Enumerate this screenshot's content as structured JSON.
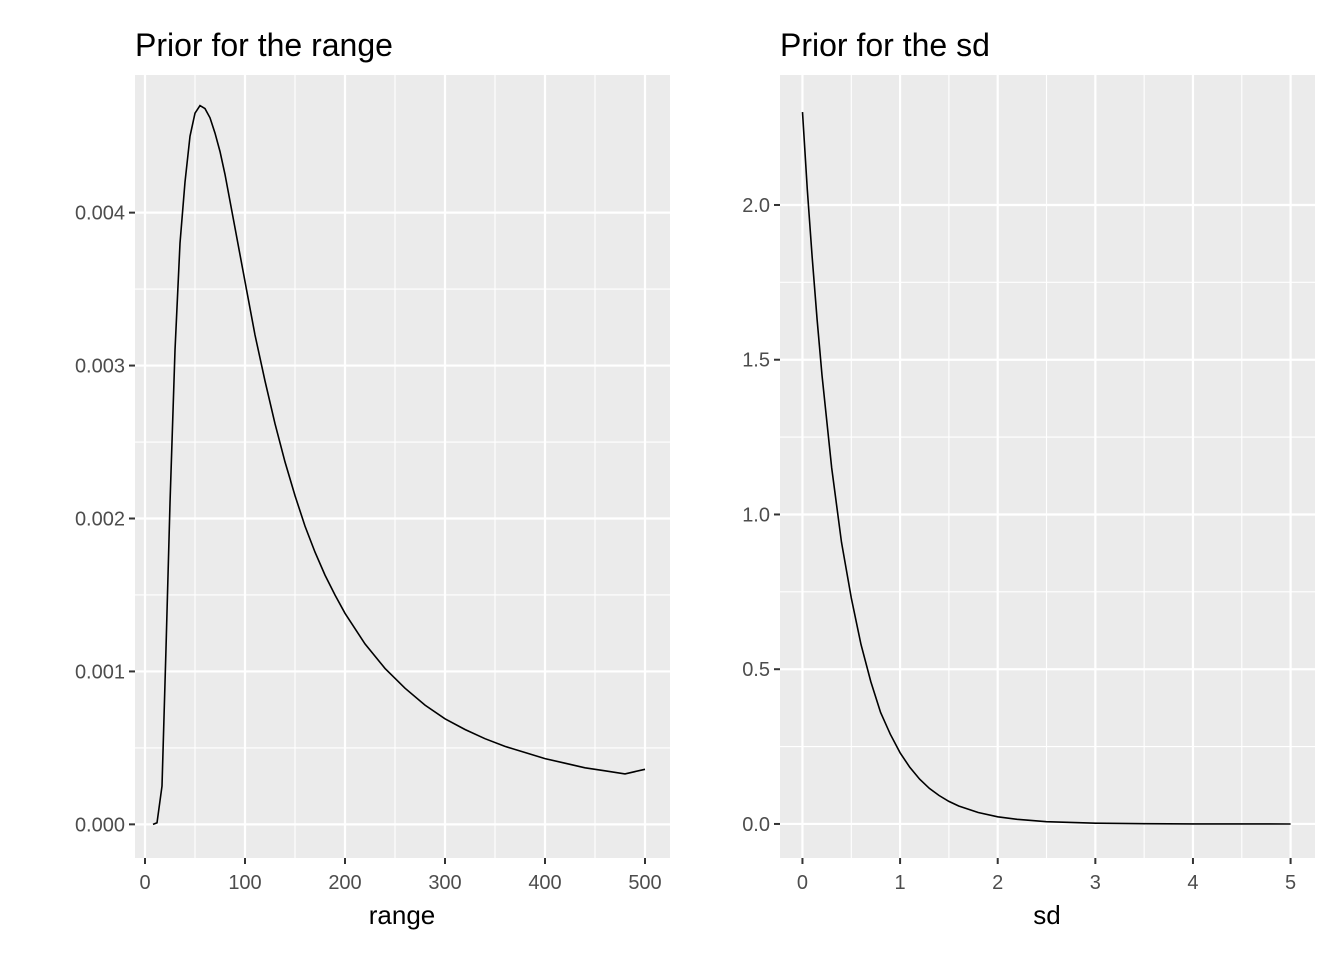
{
  "chart_data": [
    {
      "type": "line",
      "title": "Prior for the range",
      "xlabel": "range",
      "ylabel": "",
      "xlim": [
        -10,
        525
      ],
      "ylim": [
        -0.00022,
        0.0049
      ],
      "x_ticks": [
        0,
        100,
        200,
        300,
        400,
        500
      ],
      "x_tick_labels": [
        "0",
        "100",
        "200",
        "300",
        "400",
        "500"
      ],
      "y_ticks": [
        0,
        0.001,
        0.002,
        0.003,
        0.004
      ],
      "y_tick_labels": [
        "0.000",
        "0.001",
        "0.002",
        "0.003",
        "0.004"
      ],
      "grid": true,
      "series": [
        {
          "x": [
            8,
            12,
            17,
            21,
            25,
            30,
            35,
            40,
            45,
            50,
            55,
            60,
            65,
            70,
            75,
            80,
            90,
            100,
            110,
            120,
            130,
            140,
            150,
            160,
            170,
            180,
            190,
            200,
            220,
            240,
            260,
            280,
            300,
            320,
            340,
            360,
            380,
            400,
            420,
            440,
            460,
            480,
            500
          ],
          "y": [
            0.0,
            1e-05,
            0.00025,
            0.00115,
            0.0021,
            0.0031,
            0.0038,
            0.0042,
            0.0045,
            0.00465,
            0.0047,
            0.00468,
            0.00462,
            0.00452,
            0.0044,
            0.00425,
            0.0039,
            0.00355,
            0.0032,
            0.0029,
            0.00262,
            0.00237,
            0.00215,
            0.00195,
            0.00178,
            0.00163,
            0.0015,
            0.00138,
            0.00118,
            0.00102,
            0.00089,
            0.00078,
            0.00069,
            0.00062,
            0.00056,
            0.00051,
            0.00047,
            0.00043,
            0.0004,
            0.00037,
            0.00035,
            0.00033,
            0.00036
          ]
        }
      ]
    },
    {
      "type": "line",
      "title": "Prior for the sd",
      "xlabel": "sd",
      "ylabel": "",
      "xlim": [
        -0.23,
        5.25
      ],
      "ylim": [
        -0.11,
        2.42
      ],
      "x_ticks": [
        0,
        1,
        2,
        3,
        4,
        5
      ],
      "x_tick_labels": [
        "0",
        "1",
        "2",
        "3",
        "4",
        "5"
      ],
      "y_ticks": [
        0,
        0.5,
        1,
        1.5,
        2
      ],
      "y_tick_labels": [
        "0.0",
        "0.5",
        "1.0",
        "1.5",
        "2.0"
      ],
      "grid": true,
      "series": [
        {
          "x": [
            0.0,
            0.05,
            0.1,
            0.15,
            0.2,
            0.3,
            0.4,
            0.5,
            0.6,
            0.7,
            0.8,
            0.9,
            1.0,
            1.1,
            1.2,
            1.3,
            1.4,
            1.5,
            1.6,
            1.8,
            2.0,
            2.2,
            2.5,
            3.0,
            3.5,
            4.0,
            4.5,
            5.0
          ],
          "y": [
            2.3,
            2.05,
            1.83,
            1.63,
            1.45,
            1.15,
            0.91,
            0.73,
            0.58,
            0.46,
            0.36,
            0.29,
            0.23,
            0.183,
            0.145,
            0.115,
            0.092,
            0.073,
            0.058,
            0.037,
            0.023,
            0.015,
            0.0074,
            0.0023,
            0.0007,
            0.0002,
            7e-05,
            2e-05
          ]
        }
      ]
    }
  ]
}
